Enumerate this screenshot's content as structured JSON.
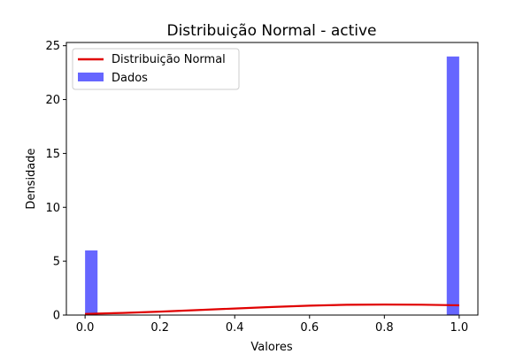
{
  "chart_data": {
    "type": "bar",
    "title": "Distribuição Normal - active",
    "xlabel": "Valores",
    "ylabel": "Densidade",
    "xlim": [
      -0.05,
      1.05
    ],
    "ylim": [
      0,
      25.3
    ],
    "xticks": [
      "0.0",
      "0.2",
      "0.4",
      "0.6",
      "0.8",
      "1.0"
    ],
    "yticks": [
      "0",
      "5",
      "10",
      "15",
      "20",
      "25"
    ],
    "grid": false,
    "legend_position": "top-left",
    "legend": [
      "Distribuição Normal",
      "Dados"
    ],
    "histogram": {
      "name": "Dados",
      "color": "#6666ff",
      "bin_width": 0.0333,
      "bins": [
        {
          "x0": 0.0,
          "x1": 0.0333,
          "value": 6.0
        },
        {
          "x0": 0.9667,
          "x1": 1.0,
          "value": 24.0
        }
      ]
    },
    "curve": {
      "name": "Distribuição Normal",
      "color": "#e00000",
      "x": [
        0.0,
        0.1,
        0.2,
        0.3,
        0.4,
        0.5,
        0.6,
        0.7,
        0.8,
        0.9,
        1.0
      ],
      "y": [
        0.11,
        0.2,
        0.32,
        0.46,
        0.61,
        0.75,
        0.87,
        0.95,
        0.98,
        0.96,
        0.9
      ]
    }
  }
}
